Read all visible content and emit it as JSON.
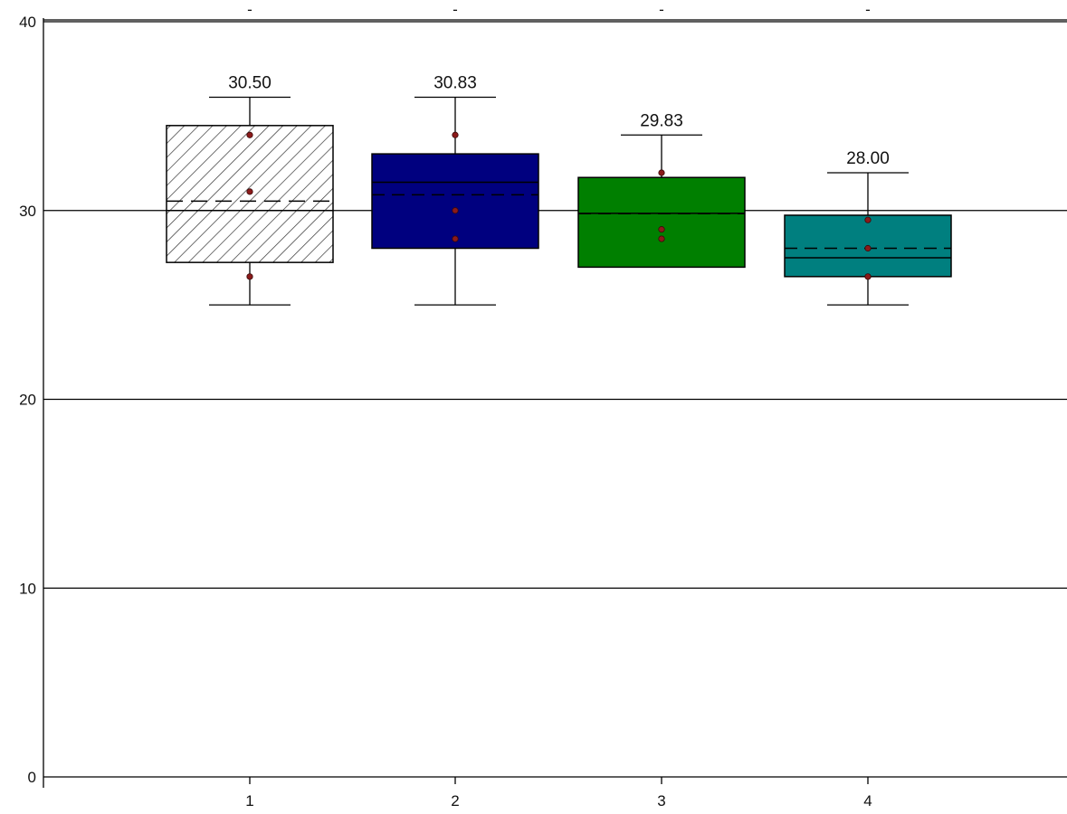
{
  "chart_data": {
    "type": "box",
    "title": "",
    "xlabel": "",
    "ylabel": "",
    "ylim": [
      0,
      40
    ],
    "yticks": [
      "0",
      "10",
      "20",
      "30",
      "40"
    ],
    "categories": [
      "1",
      "2",
      "3",
      "4"
    ],
    "top_tick_labels": [
      "-",
      "-",
      "-",
      "-"
    ],
    "grid": "horizontal",
    "legend": "none",
    "boxes": [
      {
        "category": "1",
        "whisker_low": 25,
        "q1": 27.25,
        "median": 30,
        "q3": 34.5,
        "whisker_high": 36,
        "mean": 30.5,
        "mean_label": "30.50",
        "points": [
          34,
          31,
          26.5
        ],
        "fill": "hatch",
        "color": "#ffffff"
      },
      {
        "category": "2",
        "whisker_low": 25,
        "q1": 28,
        "median": 31.5,
        "q3": 33,
        "whisker_high": 36,
        "mean": 30.83,
        "mean_label": "30.83",
        "points": [
          34,
          30,
          28.5
        ],
        "fill": "solid",
        "color": "#00007f"
      },
      {
        "category": "3",
        "whisker_low": 27,
        "q1": 27,
        "median": 29.85,
        "q3": 31.75,
        "whisker_high": 34,
        "mean": 29.83,
        "mean_label": "29.83",
        "points": [
          32,
          29,
          28.5
        ],
        "fill": "solid",
        "color": "#007f00"
      },
      {
        "category": "4",
        "whisker_low": 25,
        "q1": 26.5,
        "median": 27.5,
        "q3": 29.75,
        "whisker_high": 32,
        "mean": 28,
        "mean_label": "28.00",
        "points": [
          29.5,
          28,
          26.5
        ],
        "fill": "solid",
        "color": "#007f7f"
      }
    ],
    "point_color": "#8b1a1a"
  }
}
